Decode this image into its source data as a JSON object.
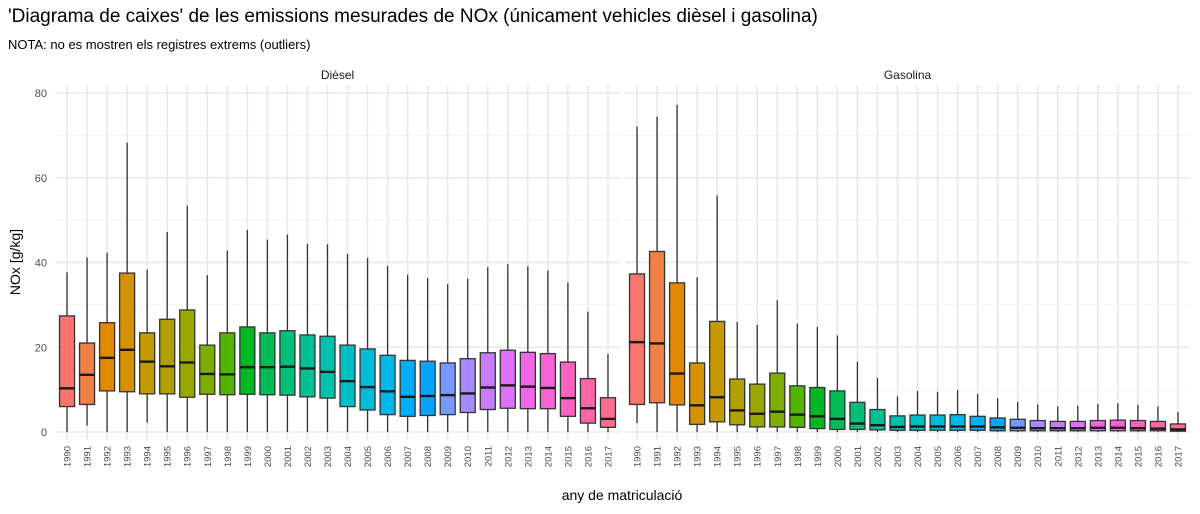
{
  "chart_data": {
    "type": "boxplot",
    "title": "'Diagrama de caixes' de les emissions mesurades de NOx (únicament vehicles dièsel i gasolina)",
    "subtitle": "NOTA: no es mostren els registres extrems (outliers)",
    "xlabel": "any de matriculació",
    "ylabel": "NOx [g/kg]",
    "ylim": [
      0,
      80
    ],
    "yticks": [
      0,
      20,
      40,
      60,
      80
    ],
    "grid": true,
    "legend": "none",
    "color_by": "year (hue palette)",
    "categories": [
      "1990",
      "1991",
      "1992",
      "1993",
      "1994",
      "1995",
      "1996",
      "1997",
      "1998",
      "1999",
      "2000",
      "2001",
      "2002",
      "2003",
      "2004",
      "2005",
      "2006",
      "2007",
      "2008",
      "2009",
      "2010",
      "2011",
      "2012",
      "2013",
      "2014",
      "2015",
      "2016",
      "2017"
    ],
    "stat_order": [
      "min",
      "q1",
      "median",
      "q3",
      "max"
    ],
    "panels": [
      {
        "name": "Dièsel",
        "boxes": [
          [
            0,
            6,
            10.3,
            27.4,
            37.7
          ],
          [
            1.5,
            6.5,
            13.5,
            21,
            41.2
          ],
          [
            0,
            9.7,
            17.5,
            25.8,
            42.3
          ],
          [
            0,
            9.5,
            19.4,
            37.5,
            68.3
          ],
          [
            2.2,
            9,
            16.6,
            23.4,
            38.3
          ],
          [
            0,
            9,
            15.5,
            26.6,
            47.2
          ],
          [
            0,
            8.2,
            16.4,
            28.8,
            53.4
          ],
          [
            0,
            8.9,
            13.7,
            20.5,
            37
          ],
          [
            0,
            8.8,
            13.6,
            23.4,
            42.8
          ],
          [
            0,
            8.9,
            15.3,
            24.8,
            47.7
          ],
          [
            0,
            8.8,
            15.3,
            23.4,
            45.4
          ],
          [
            0,
            8.7,
            15.4,
            23.9,
            46.6
          ],
          [
            0,
            8.3,
            15,
            22.9,
            44.4
          ],
          [
            0,
            8,
            14.2,
            22.6,
            44.3
          ],
          [
            0,
            6,
            12,
            20.5,
            42
          ],
          [
            0,
            5.2,
            10.6,
            19.6,
            41.1
          ],
          [
            0,
            4.1,
            9.6,
            18.1,
            39.2
          ],
          [
            0,
            3.7,
            8.3,
            16.9,
            37.1
          ],
          [
            0,
            3.9,
            8.5,
            16.7,
            36.3
          ],
          [
            0,
            4.1,
            8.7,
            16.3,
            34.9
          ],
          [
            0,
            4.6,
            9.1,
            17.3,
            36.2
          ],
          [
            0,
            5.3,
            10.5,
            18.7,
            38.9
          ],
          [
            0,
            5.6,
            11,
            19.3,
            39.6
          ],
          [
            0,
            5.5,
            10.7,
            18.8,
            39.1
          ],
          [
            0,
            5.5,
            10.4,
            18.5,
            38.1
          ],
          [
            0,
            3.7,
            8,
            16.5,
            35.3
          ],
          [
            0,
            2.1,
            5.6,
            12.6,
            28.4
          ],
          [
            0,
            1.1,
            3.1,
            8.1,
            18.4
          ]
        ]
      },
      {
        "name": "Gasolina",
        "boxes": [
          [
            2.1,
            6.5,
            21.2,
            37.3,
            72.1
          ],
          [
            0,
            6.9,
            20.9,
            42.6,
            74.4
          ],
          [
            0,
            6.4,
            13.8,
            35.2,
            77.2
          ],
          [
            0,
            1.8,
            6.3,
            16.3,
            36.5
          ],
          [
            0,
            2.4,
            8.2,
            26.1,
            55.8
          ],
          [
            0,
            1.7,
            5.1,
            12.5,
            26
          ],
          [
            0,
            1.2,
            4.3,
            11.3,
            25.3
          ],
          [
            0,
            1.2,
            4.8,
            13.9,
            31.1
          ],
          [
            0,
            1.1,
            4.1,
            10.9,
            25.6
          ],
          [
            0,
            0.8,
            3.7,
            10.5,
            24.8
          ],
          [
            0,
            0.6,
            3.1,
            9.7,
            22.8
          ],
          [
            0,
            0.6,
            2,
            7,
            16.6
          ],
          [
            0,
            0.5,
            1.6,
            5.3,
            12.8
          ],
          [
            0,
            0.4,
            1.2,
            3.8,
            8.4
          ],
          [
            0,
            0.4,
            1.3,
            4,
            9.7
          ],
          [
            0,
            0.4,
            1.3,
            4,
            9.5
          ],
          [
            0,
            0.4,
            1.3,
            4.1,
            9.9
          ],
          [
            0,
            0.4,
            1.3,
            3.7,
            9
          ],
          [
            0,
            0.3,
            1.1,
            3.3,
            8
          ],
          [
            0,
            0.3,
            1,
            3,
            7.1
          ],
          [
            0,
            0.3,
            0.9,
            2.7,
            6.5
          ],
          [
            0,
            0.3,
            0.9,
            2.5,
            6
          ],
          [
            0,
            0.3,
            0.9,
            2.5,
            6.2
          ],
          [
            0,
            0.3,
            1,
            2.7,
            6.6
          ],
          [
            0,
            0.3,
            1,
            2.8,
            6.8
          ],
          [
            0,
            0.3,
            0.9,
            2.7,
            6.4
          ],
          [
            0,
            0.3,
            0.8,
            2.5,
            6
          ],
          [
            0,
            0.2,
            0.6,
            1.9,
            4.7
          ]
        ]
      }
    ]
  }
}
